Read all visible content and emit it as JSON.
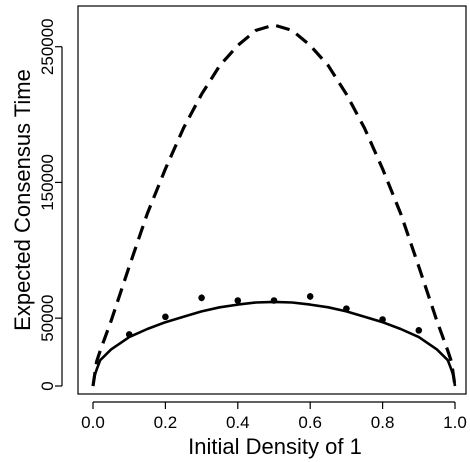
{
  "chart_data": {
    "type": "line",
    "title": "",
    "xlabel": "Initial Density of 1",
    "ylabel": "Expected Consensus Time",
    "xlim": [
      0,
      1
    ],
    "ylim": [
      0,
      280000
    ],
    "x_ticks": [
      0.0,
      0.2,
      0.4,
      0.6,
      0.8,
      1.0
    ],
    "x_tick_labels": [
      "0.0",
      "0.2",
      "0.4",
      "0.6",
      "0.8",
      "1.0"
    ],
    "y_ticks": [
      0,
      50000,
      150000,
      250000
    ],
    "y_tick_labels": [
      "0",
      "50000",
      "150000",
      "250000"
    ],
    "grid": false,
    "legend": "none",
    "series": [
      {
        "style": "dashed",
        "color": "#000000",
        "x": [
          0.0,
          0.01,
          0.02,
          0.05,
          0.1,
          0.15,
          0.2,
          0.25,
          0.3,
          0.35,
          0.4,
          0.45,
          0.5,
          0.55,
          0.6,
          0.65,
          0.7,
          0.75,
          0.8,
          0.85,
          0.9,
          0.95,
          0.98,
          0.99,
          1.0
        ],
        "values": [
          0,
          18000,
          26000,
          48000,
          88000,
          127000,
          160000,
          190000,
          215000,
          236000,
          251000,
          262000,
          266000,
          262000,
          251000,
          236000,
          215000,
          190000,
          160000,
          127000,
          88000,
          48000,
          26000,
          18000,
          0
        ]
      },
      {
        "style": "solid",
        "color": "#000000",
        "x": [
          0.0,
          0.005,
          0.01,
          0.02,
          0.05,
          0.1,
          0.15,
          0.2,
          0.25,
          0.3,
          0.35,
          0.4,
          0.45,
          0.5,
          0.55,
          0.6,
          0.65,
          0.7,
          0.75,
          0.8,
          0.85,
          0.9,
          0.95,
          0.98,
          0.99,
          0.995,
          1.0
        ],
        "values": [
          0,
          8000,
          12000,
          19000,
          27000,
          36000,
          42000,
          47000,
          51000,
          55000,
          58000,
          60000,
          61500,
          62000,
          61500,
          60000,
          58000,
          55000,
          51000,
          47000,
          42000,
          36000,
          27000,
          19000,
          12000,
          8000,
          0
        ]
      }
    ],
    "points": {
      "x": [
        0.1,
        0.2,
        0.3,
        0.4,
        0.5,
        0.6,
        0.7,
        0.8,
        0.9
      ],
      "values": [
        38000,
        51000,
        65000,
        63000,
        63000,
        66000,
        57000,
        49000,
        41000
      ],
      "errors": [
        1500,
        2000,
        2500,
        2000,
        2000,
        2500,
        2000,
        1800,
        1800
      ]
    },
    "axis_color": "#000000"
  }
}
